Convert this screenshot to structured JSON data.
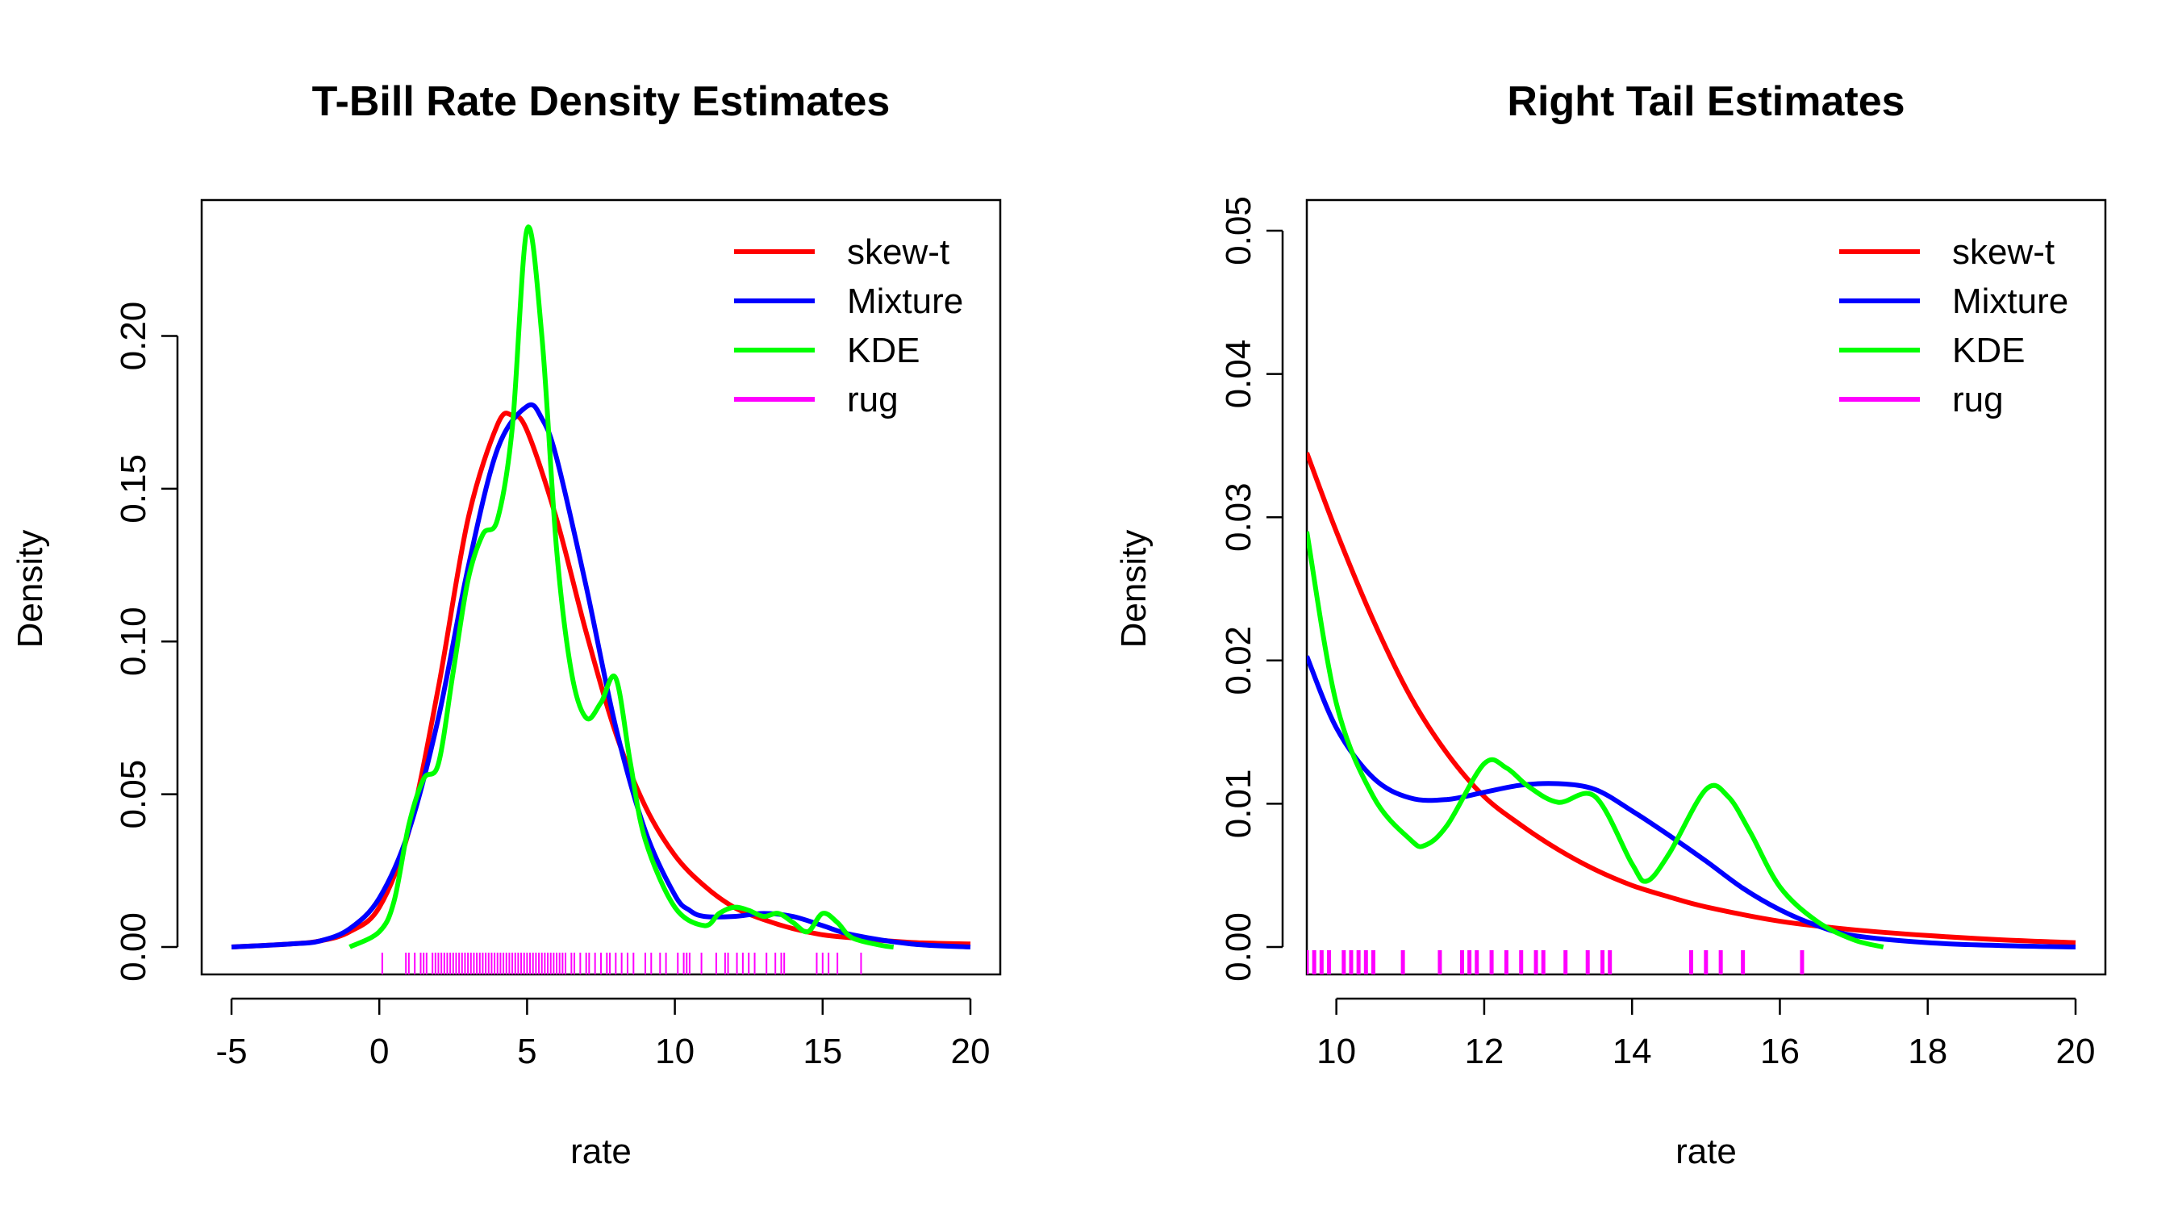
{
  "chart_data": [
    {
      "type": "line",
      "title": "T-Bill Rate Density Estimates",
      "xlabel": "rate",
      "ylabel": "Density",
      "xlim": [
        -5,
        20
      ],
      "ylim": [
        0,
        0.235
      ],
      "xticks": [
        -5,
        0,
        5,
        10,
        15,
        20
      ],
      "xtick_labels": [
        "-5",
        "0",
        "5",
        "10",
        "15",
        "20"
      ],
      "yticks": [
        0.0,
        0.05,
        0.1,
        0.15,
        0.2
      ],
      "ytick_labels": [
        "0.00",
        "0.05",
        "0.10",
        "0.15",
        "0.20"
      ],
      "legend_position": "top-right",
      "legend": [
        {
          "label": "skew-t",
          "color": "#ff0000"
        },
        {
          "label": "Mixture",
          "color": "#0000ff"
        },
        {
          "label": "KDE",
          "color": "#00ff00"
        },
        {
          "label": "rug",
          "color": "#ff00ff"
        }
      ],
      "series": [
        {
          "name": "skew-t",
          "color": "#ff0000",
          "x": [
            -5,
            -3,
            -2,
            -1,
            0,
            1,
            2,
            3,
            4,
            4.5,
            5,
            6,
            7,
            8,
            9,
            10,
            11,
            12,
            13,
            14,
            15,
            16,
            18,
            20
          ],
          "y": [
            0,
            0.001,
            0.002,
            0.005,
            0.013,
            0.038,
            0.085,
            0.14,
            0.171,
            0.174,
            0.169,
            0.14,
            0.103,
            0.07,
            0.046,
            0.03,
            0.02,
            0.013,
            0.009,
            0.006,
            0.004,
            0.003,
            0.0015,
            0.001
          ]
        },
        {
          "name": "Mixture",
          "color": "#0000ff",
          "x": [
            -5,
            -3,
            -2,
            -1,
            0,
            1,
            2,
            3,
            4,
            5,
            5.5,
            6,
            7,
            8,
            9,
            10,
            10.5,
            11,
            12,
            13,
            14,
            15,
            16,
            18,
            20
          ],
          "y": [
            0,
            0.001,
            0.002,
            0.006,
            0.016,
            0.038,
            0.075,
            0.124,
            0.163,
            0.177,
            0.173,
            0.16,
            0.118,
            0.072,
            0.038,
            0.017,
            0.012,
            0.01,
            0.01,
            0.011,
            0.01,
            0.007,
            0.004,
            0.001,
            0
          ]
        },
        {
          "name": "KDE",
          "color": "#00ff00",
          "x": [
            -1,
            0,
            0.5,
            1,
            1.5,
            2,
            2.5,
            3,
            3.5,
            4,
            4.5,
            5,
            5.5,
            6,
            6.5,
            7,
            7.5,
            8,
            8.5,
            9,
            10,
            11,
            11.5,
            12,
            12.5,
            13,
            13.5,
            14,
            14.5,
            15,
            15.5,
            16,
            17,
            17.4
          ],
          "y": [
            0,
            0.005,
            0.015,
            0.04,
            0.055,
            0.06,
            0.09,
            0.12,
            0.135,
            0.14,
            0.17,
            0.235,
            0.2,
            0.13,
            0.09,
            0.075,
            0.08,
            0.088,
            0.06,
            0.035,
            0.013,
            0.007,
            0.011,
            0.013,
            0.012,
            0.01,
            0.011,
            0.008,
            0.005,
            0.011,
            0.008,
            0.003,
            0.0005,
            0
          ]
        }
      ],
      "rug": [
        0.1,
        0.9,
        1.0,
        1.2,
        1.4,
        1.5,
        1.6,
        1.8,
        1.9,
        2.0,
        2.1,
        2.2,
        2.3,
        2.4,
        2.5,
        2.6,
        2.7,
        2.8,
        2.9,
        3.0,
        3.1,
        3.2,
        3.3,
        3.4,
        3.5,
        3.6,
        3.7,
        3.8,
        3.9,
        4.0,
        4.1,
        4.2,
        4.3,
        4.4,
        4.5,
        4.6,
        4.7,
        4.8,
        4.9,
        5.0,
        5.1,
        5.2,
        5.3,
        5.4,
        5.5,
        5.6,
        5.7,
        5.8,
        5.9,
        6.0,
        6.1,
        6.2,
        6.3,
        6.5,
        6.6,
        6.8,
        7.0,
        7.1,
        7.3,
        7.5,
        7.7,
        7.8,
        8.0,
        8.2,
        8.4,
        8.6,
        9.0,
        9.2,
        9.5,
        9.7,
        10.1,
        10.3,
        10.4,
        10.5,
        10.9,
        11.4,
        11.7,
        11.8,
        12.1,
        12.3,
        12.5,
        12.7,
        13.1,
        13.4,
        13.6,
        13.7,
        14.8,
        15.0,
        15.2,
        15.5,
        16.3
      ]
    },
    {
      "type": "line",
      "title": "Right Tail Estimates",
      "xlabel": "rate",
      "ylabel": "Density",
      "xlim": [
        9.6,
        20
      ],
      "ylim": [
        0,
        0.05
      ],
      "xticks": [
        10,
        12,
        14,
        16,
        18,
        20
      ],
      "xtick_labels": [
        "10",
        "12",
        "14",
        "16",
        "18",
        "20"
      ],
      "yticks": [
        0.0,
        0.01,
        0.02,
        0.03,
        0.04,
        0.05
      ],
      "ytick_labels": [
        "0.00",
        "0.01",
        "0.02",
        "0.03",
        "0.04",
        "0.05"
      ],
      "legend_position": "top-right",
      "legend": [
        {
          "label": "skew-t",
          "color": "#ff0000"
        },
        {
          "label": "Mixture",
          "color": "#0000ff"
        },
        {
          "label": "KDE",
          "color": "#00ff00"
        },
        {
          "label": "rug",
          "color": "#ff00ff"
        }
      ],
      "series": [
        {
          "name": "skew-t",
          "color": "#ff0000",
          "x": [
            9.6,
            10,
            10.5,
            11,
            11.5,
            12,
            12.5,
            13,
            13.5,
            14,
            14.5,
            15,
            16,
            17,
            18,
            19,
            20
          ],
          "y": [
            0.0345,
            0.029,
            0.0228,
            0.0175,
            0.0135,
            0.0105,
            0.0085,
            0.0068,
            0.0054,
            0.0043,
            0.0035,
            0.0028,
            0.0018,
            0.0012,
            0.0008,
            0.0005,
            0.0003
          ]
        },
        {
          "name": "Mixture",
          "color": "#0000ff",
          "x": [
            9.6,
            10,
            10.5,
            11,
            11.5,
            12,
            12.5,
            13,
            13.5,
            14,
            14.5,
            15,
            15.5,
            16,
            16.5,
            17,
            18,
            19,
            20
          ],
          "y": [
            0.0203,
            0.0153,
            0.0118,
            0.0104,
            0.0103,
            0.0108,
            0.0113,
            0.0114,
            0.011,
            0.0095,
            0.0078,
            0.006,
            0.0041,
            0.0026,
            0.0015,
            0.0008,
            0.0003,
            0.0001,
            0
          ]
        },
        {
          "name": "KDE",
          "color": "#00ff00",
          "x": [
            9.6,
            10,
            10.5,
            11,
            11.2,
            11.5,
            12,
            12.3,
            12.6,
            13,
            13.5,
            14,
            14.2,
            14.5,
            15,
            15.3,
            15.6,
            16,
            16.5,
            17,
            17.4
          ],
          "y": [
            0.029,
            0.017,
            0.0105,
            0.0075,
            0.0071,
            0.0085,
            0.0128,
            0.0125,
            0.0112,
            0.0101,
            0.0105,
            0.0058,
            0.0046,
            0.0065,
            0.011,
            0.0105,
            0.008,
            0.0042,
            0.0018,
            0.0005,
            0
          ]
        }
      ],
      "rug": [
        9.6,
        9.7,
        9.8,
        9.9,
        10.1,
        10.2,
        10.3,
        10.4,
        10.5,
        10.9,
        11.4,
        11.7,
        11.8,
        11.9,
        12.1,
        12.3,
        12.5,
        12.7,
        12.8,
        13.1,
        13.4,
        13.6,
        13.7,
        14.8,
        15.0,
        15.2,
        15.5,
        16.3
      ]
    }
  ]
}
